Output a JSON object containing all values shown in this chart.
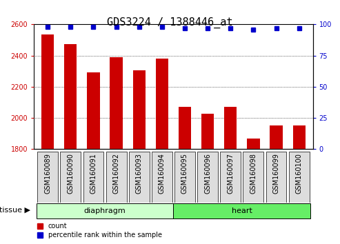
{
  "title": "GDS3224 / 1388446_at",
  "samples": [
    "GSM160089",
    "GSM160090",
    "GSM160091",
    "GSM160092",
    "GSM160093",
    "GSM160094",
    "GSM160095",
    "GSM160096",
    "GSM160097",
    "GSM160098",
    "GSM160099",
    "GSM160100"
  ],
  "counts": [
    2535,
    2475,
    2290,
    2390,
    2305,
    2380,
    2070,
    2025,
    2070,
    1865,
    1950,
    1950
  ],
  "percentile_ranks": [
    98,
    98,
    98,
    98,
    98,
    98,
    97,
    97,
    97,
    96,
    97,
    97
  ],
  "groups": [
    "diaphragm",
    "diaphragm",
    "diaphragm",
    "diaphragm",
    "diaphragm",
    "diaphragm",
    "heart",
    "heart",
    "heart",
    "heart",
    "heart",
    "heart"
  ],
  "bar_color": "#CC0000",
  "dot_color": "#0000CC",
  "ylim_left": [
    1800,
    2600
  ],
  "ylim_right": [
    0,
    100
  ],
  "yticks_left": [
    1800,
    2000,
    2200,
    2400,
    2600
  ],
  "yticks_right": [
    0,
    25,
    50,
    75,
    100
  ],
  "diaphragm_color": "#CCFFCC",
  "heart_color": "#66EE66",
  "xticklabel_bg": "#DDDDDD",
  "tissue_label": "tissue",
  "legend_count_label": "count",
  "legend_pct_label": "percentile rank within the sample",
  "title_fontsize": 11,
  "tick_fontsize": 7,
  "label_fontsize": 8,
  "bar_width": 0.55
}
